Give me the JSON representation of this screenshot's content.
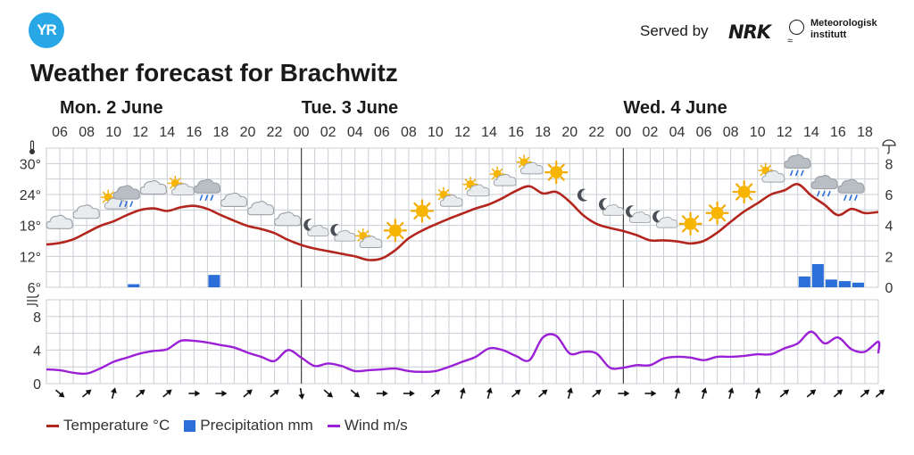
{
  "header": {
    "logo_text": "YR",
    "served_by": "Served by",
    "nrk_logo_text": "NRK",
    "met_logo_text_1": "Meteorologisk",
    "met_logo_text_2": "institutt"
  },
  "page_title": "Weather forecast for Brachwitz",
  "legend": {
    "temperature": "Temperature °C",
    "precipitation": "Precipitation mm",
    "wind": "Wind m/s"
  },
  "colors": {
    "temperature": "#b3261e",
    "precipitation": "#2c6fd9",
    "wind": "#9b1fd6",
    "grid": "#c9ced4",
    "yr_blue": "#27a7e6"
  },
  "chart_data": {
    "type": "line",
    "days": [
      {
        "label": "Mon. 2 June",
        "start_hour": 6
      },
      {
        "label": "Tue. 3 June",
        "start_hour": 24
      },
      {
        "label": "Wed. 4 June",
        "start_hour": 48
      }
    ],
    "x_start_hour": 5,
    "x_end_hour": 67,
    "x_tick_labels": [
      "06",
      "08",
      "10",
      "12",
      "14",
      "16",
      "18",
      "20",
      "22",
      "00",
      "02",
      "04",
      "06",
      "08",
      "10",
      "12",
      "14",
      "16",
      "18",
      "20",
      "22",
      "00",
      "02",
      "04",
      "06",
      "08",
      "10",
      "12",
      "14",
      "16",
      "18"
    ],
    "x_tick_hours": [
      6,
      8,
      10,
      12,
      14,
      16,
      18,
      20,
      22,
      24,
      26,
      28,
      30,
      32,
      34,
      36,
      38,
      40,
      42,
      44,
      46,
      48,
      50,
      52,
      54,
      56,
      58,
      60,
      62,
      64,
      66
    ],
    "temperature": {
      "ylim": [
        6,
        33
      ],
      "yticks": [
        "6°",
        "12°",
        "18°",
        "24°",
        "30°"
      ],
      "ytick_values": [
        6,
        12,
        18,
        24,
        30
      ],
      "points": [
        [
          5,
          14.3
        ],
        [
          6,
          14.6
        ],
        [
          7,
          15.3
        ],
        [
          8,
          16.6
        ],
        [
          9,
          17.9
        ],
        [
          10,
          18.8
        ],
        [
          11,
          20.0
        ],
        [
          12,
          21.0
        ],
        [
          13,
          21.3
        ],
        [
          14,
          20.8
        ],
        [
          15,
          21.5
        ],
        [
          16,
          21.8
        ],
        [
          17,
          21.2
        ],
        [
          18,
          20.0
        ],
        [
          19,
          18.9
        ],
        [
          20,
          17.9
        ],
        [
          21,
          17.3
        ],
        [
          22,
          16.5
        ],
        [
          23,
          15.2
        ],
        [
          24,
          14.2
        ],
        [
          25,
          13.5
        ],
        [
          26,
          13.0
        ],
        [
          27,
          12.5
        ],
        [
          28,
          12.0
        ],
        [
          29,
          11.3
        ],
        [
          30,
          11.6
        ],
        [
          31,
          13.2
        ],
        [
          32,
          15.5
        ],
        [
          33,
          17.0
        ],
        [
          34,
          18.2
        ],
        [
          35,
          19.3
        ],
        [
          36,
          20.3
        ],
        [
          37,
          21.3
        ],
        [
          38,
          22.1
        ],
        [
          39,
          23.3
        ],
        [
          40,
          24.7
        ],
        [
          41,
          25.6
        ],
        [
          42,
          24.2
        ],
        [
          43,
          24.5
        ],
        [
          44,
          22.6
        ],
        [
          45,
          20.0
        ],
        [
          46,
          18.3
        ],
        [
          47,
          17.5
        ],
        [
          48,
          16.9
        ],
        [
          49,
          16.1
        ],
        [
          50,
          15.1
        ],
        [
          51,
          15.1
        ],
        [
          52,
          14.9
        ],
        [
          53,
          14.5
        ],
        [
          54,
          15.0
        ],
        [
          55,
          16.6
        ],
        [
          56,
          18.7
        ],
        [
          57,
          20.7
        ],
        [
          58,
          22.3
        ],
        [
          59,
          24.0
        ],
        [
          60,
          24.8
        ],
        [
          61,
          26.0
        ],
        [
          62,
          23.8
        ],
        [
          63,
          22.0
        ],
        [
          64,
          20.0
        ],
        [
          65,
          21.2
        ],
        [
          66,
          20.4
        ],
        [
          67,
          20.6
        ]
      ]
    },
    "precipitation": {
      "ylim": [
        0,
        9
      ],
      "yticks": [
        "0",
        "2",
        "4",
        "6",
        "8"
      ],
      "ytick_values": [
        0,
        2,
        4,
        6,
        8
      ],
      "bars": [
        [
          11,
          0.2
        ],
        [
          17,
          0.8
        ],
        [
          61,
          0.7
        ],
        [
          62,
          1.5
        ],
        [
          63,
          0.5
        ],
        [
          64,
          0.4
        ],
        [
          65,
          0.3
        ]
      ]
    },
    "wind": {
      "ylim": [
        0,
        10
      ],
      "yticks": [
        "0",
        "4",
        "8"
      ],
      "ytick_values": [
        0,
        4,
        8
      ],
      "points": [
        [
          5,
          1.7
        ],
        [
          6,
          1.6
        ],
        [
          7,
          1.3
        ],
        [
          8,
          1.2
        ],
        [
          9,
          1.8
        ],
        [
          10,
          2.6
        ],
        [
          11,
          3.1
        ],
        [
          12,
          3.6
        ],
        [
          13,
          3.9
        ],
        [
          14,
          4.1
        ],
        [
          15,
          5.1
        ],
        [
          16,
          5.1
        ],
        [
          17,
          4.9
        ],
        [
          18,
          4.6
        ],
        [
          19,
          4.3
        ],
        [
          20,
          3.7
        ],
        [
          21,
          3.2
        ],
        [
          22,
          2.7
        ],
        [
          23,
          4.0
        ],
        [
          24,
          3.1
        ],
        [
          25,
          2.1
        ],
        [
          26,
          2.4
        ],
        [
          27,
          2.1
        ],
        [
          28,
          1.5
        ],
        [
          29,
          1.6
        ],
        [
          30,
          1.7
        ],
        [
          31,
          1.8
        ],
        [
          32,
          1.5
        ],
        [
          33,
          1.4
        ],
        [
          34,
          1.5
        ],
        [
          35,
          2.0
        ],
        [
          36,
          2.6
        ],
        [
          37,
          3.2
        ],
        [
          38,
          4.2
        ],
        [
          39,
          4.0
        ],
        [
          40,
          3.3
        ],
        [
          41,
          2.8
        ],
        [
          42,
          5.5
        ],
        [
          43,
          5.7
        ],
        [
          44,
          3.6
        ],
        [
          45,
          3.8
        ],
        [
          46,
          3.6
        ],
        [
          47,
          1.9
        ],
        [
          48,
          1.9
        ],
        [
          49,
          2.2
        ],
        [
          50,
          2.2
        ],
        [
          51,
          3.0
        ],
        [
          52,
          3.2
        ],
        [
          53,
          3.1
        ],
        [
          54,
          2.8
        ],
        [
          55,
          3.2
        ],
        [
          56,
          3.2
        ],
        [
          57,
          3.3
        ],
        [
          58,
          3.5
        ],
        [
          59,
          3.5
        ],
        [
          60,
          4.2
        ],
        [
          61,
          4.8
        ],
        [
          62,
          6.2
        ],
        [
          63,
          4.8
        ],
        [
          64,
          5.5
        ],
        [
          65,
          4.1
        ],
        [
          66,
          3.8
        ],
        [
          67,
          5.0
        ],
        [
          68,
          3.6
        ]
      ]
    },
    "weather_icons": [
      {
        "hour": 6,
        "type": "cloud"
      },
      {
        "hour": 8,
        "type": "cloud"
      },
      {
        "hour": 10,
        "type": "sun-cloud"
      },
      {
        "hour": 11,
        "type": "rain-cloud"
      },
      {
        "hour": 13,
        "type": "cloud"
      },
      {
        "hour": 15,
        "type": "sun-cloud"
      },
      {
        "hour": 17,
        "type": "rain-cloud"
      },
      {
        "hour": 19,
        "type": "cloud"
      },
      {
        "hour": 21,
        "type": "cloud"
      },
      {
        "hour": 23,
        "type": "cloud"
      },
      {
        "hour": 25,
        "type": "moon-cloud"
      },
      {
        "hour": 27,
        "type": "moon-cloud"
      },
      {
        "hour": 29,
        "type": "sun-cloud"
      },
      {
        "hour": 31,
        "type": "sun"
      },
      {
        "hour": 33,
        "type": "sun"
      },
      {
        "hour": 35,
        "type": "sun-cloud"
      },
      {
        "hour": 37,
        "type": "sun-cloud"
      },
      {
        "hour": 39,
        "type": "sun-cloud"
      },
      {
        "hour": 41,
        "type": "sun-cloud"
      },
      {
        "hour": 43,
        "type": "sun"
      },
      {
        "hour": 45,
        "type": "moon"
      },
      {
        "hour": 47,
        "type": "moon-cloud"
      },
      {
        "hour": 49,
        "type": "moon-cloud"
      },
      {
        "hour": 51,
        "type": "moon-cloud"
      },
      {
        "hour": 53,
        "type": "sun"
      },
      {
        "hour": 55,
        "type": "sun"
      },
      {
        "hour": 57,
        "type": "sun"
      },
      {
        "hour": 59,
        "type": "sun-cloud"
      },
      {
        "hour": 61,
        "type": "rain-cloud"
      },
      {
        "hour": 63,
        "type": "rain-cloud"
      },
      {
        "hour": 65,
        "type": "rain-cloud"
      }
    ],
    "wind_arrows": [
      {
        "hour": 6,
        "dir": "down-right"
      },
      {
        "hour": 8,
        "dir": "up-right"
      },
      {
        "hour": 10,
        "dir": "up"
      },
      {
        "hour": 12,
        "dir": "up-right"
      },
      {
        "hour": 14,
        "dir": "up-right"
      },
      {
        "hour": 16,
        "dir": "right"
      },
      {
        "hour": 18,
        "dir": "right"
      },
      {
        "hour": 20,
        "dir": "up-right"
      },
      {
        "hour": 22,
        "dir": "up-right"
      },
      {
        "hour": 24,
        "dir": "down"
      },
      {
        "hour": 26,
        "dir": "down-right"
      },
      {
        "hour": 28,
        "dir": "down-right"
      },
      {
        "hour": 30,
        "dir": "right"
      },
      {
        "hour": 32,
        "dir": "right"
      },
      {
        "hour": 34,
        "dir": "up-right"
      },
      {
        "hour": 36,
        "dir": "up"
      },
      {
        "hour": 38,
        "dir": "up"
      },
      {
        "hour": 40,
        "dir": "up-right"
      },
      {
        "hour": 42,
        "dir": "up-right"
      },
      {
        "hour": 44,
        "dir": "up"
      },
      {
        "hour": 46,
        "dir": "up-right"
      },
      {
        "hour": 48,
        "dir": "right"
      },
      {
        "hour": 50,
        "dir": "right"
      },
      {
        "hour": 52,
        "dir": "up"
      },
      {
        "hour": 54,
        "dir": "up"
      },
      {
        "hour": 56,
        "dir": "up"
      },
      {
        "hour": 58,
        "dir": "up"
      },
      {
        "hour": 60,
        "dir": "up-right"
      },
      {
        "hour": 62,
        "dir": "up-right"
      },
      {
        "hour": 64,
        "dir": "up-right"
      },
      {
        "hour": 66,
        "dir": "up-right"
      },
      {
        "hour": 68,
        "dir": "up-right"
      }
    ],
    "grid": true,
    "legend_position": "bottom-left"
  }
}
